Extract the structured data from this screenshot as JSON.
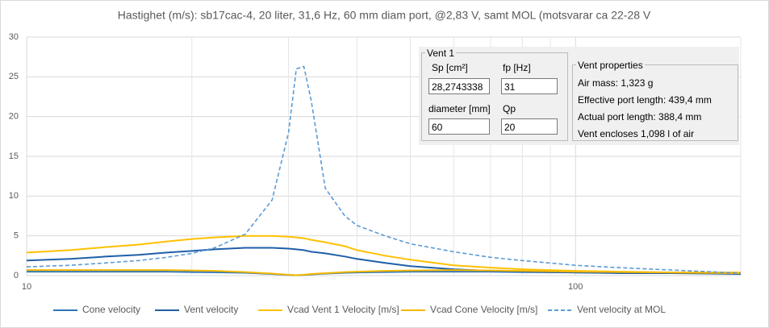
{
  "chart_data": {
    "type": "line",
    "title": "Hastighet (m/s): sb17cac-4, 20 liter, 31,6 Hz, 60 mm diam port, @2,83 V, samt MOL (motsvarar ca 22-28 V",
    "x": [
      10,
      12,
      14,
      16,
      18,
      20,
      22,
      25,
      28,
      30,
      31,
      32,
      33,
      35,
      38,
      40,
      45,
      50,
      60,
      70,
      80,
      100,
      120,
      150,
      200
    ],
    "xlim": [
      10,
      200
    ],
    "xticks": [
      10,
      100
    ],
    "xminor": [
      20,
      30,
      40,
      50,
      60,
      70,
      80,
      90,
      200
    ],
    "xlog": true,
    "ylim": [
      0,
      30
    ],
    "yticks": [
      0,
      5,
      10,
      15,
      20,
      25,
      30
    ],
    "grid": true,
    "series": [
      {
        "name": "Cone velocity",
        "color": "#2e75b6",
        "dashed": false,
        "values": [
          0.5,
          0.5,
          0.5,
          0.5,
          0.5,
          0.45,
          0.42,
          0.35,
          0.2,
          0.08,
          0.05,
          0.08,
          0.15,
          0.25,
          0.35,
          0.4,
          0.45,
          0.5,
          0.5,
          0.5,
          0.45,
          0.4,
          0.35,
          0.3,
          0.3
        ]
      },
      {
        "name": "Vent velocity",
        "color": "#1f5fa8",
        "dashed": false,
        "values": [
          1.9,
          2.1,
          2.4,
          2.6,
          2.9,
          3.1,
          3.3,
          3.5,
          3.5,
          3.4,
          3.3,
          3.2,
          3.0,
          2.8,
          2.4,
          2.1,
          1.6,
          1.2,
          0.8,
          0.6,
          0.5,
          0.4,
          0.3,
          0.3,
          0.2
        ]
      },
      {
        "name": "Vcad Vent 1 Velocity [m/s]",
        "color": "#ffc000",
        "dashed": false,
        "values": [
          2.9,
          3.2,
          3.6,
          3.9,
          4.3,
          4.6,
          4.8,
          5.0,
          5.0,
          4.9,
          4.8,
          4.7,
          4.5,
          4.2,
          3.7,
          3.2,
          2.5,
          2.0,
          1.3,
          1.0,
          0.8,
          0.6,
          0.5,
          0.4,
          0.3
        ]
      },
      {
        "name": "Vcad Cone Velocity [m/s]",
        "color": "#f5b800",
        "dashed": false,
        "values": [
          0.7,
          0.7,
          0.7,
          0.7,
          0.7,
          0.65,
          0.6,
          0.45,
          0.25,
          0.1,
          0.05,
          0.1,
          0.2,
          0.3,
          0.45,
          0.5,
          0.6,
          0.65,
          0.7,
          0.65,
          0.6,
          0.5,
          0.45,
          0.4,
          0.4
        ]
      },
      {
        "name": "Vent velocity at MOL",
        "color": "#5b9bd5",
        "dashed": true,
        "values": [
          1.1,
          1.3,
          1.6,
          1.9,
          2.3,
          2.8,
          3.5,
          5.2,
          9.5,
          18,
          26,
          26.3,
          22,
          11,
          7.5,
          6.3,
          5,
          4,
          3,
          2.3,
          1.9,
          1.3,
          1.0,
          0.7,
          0.3
        ]
      }
    ],
    "inset": {
      "group_title": "Vent 1",
      "fields": [
        {
          "label": "Sp [cm²]",
          "value": "28,2743338"
        },
        {
          "label": "fp [Hz]",
          "value": "31"
        },
        {
          "label": "diameter [mm]",
          "value": "60"
        },
        {
          "label": "Qp",
          "value": "20"
        }
      ],
      "props_title": "Vent properties",
      "props": [
        "Air mass: 1,323 g",
        "Effective port length: 439,4 mm",
        "Actual port length: 388,4 mm",
        "Vent encloses 1,098 l of air"
      ]
    }
  }
}
